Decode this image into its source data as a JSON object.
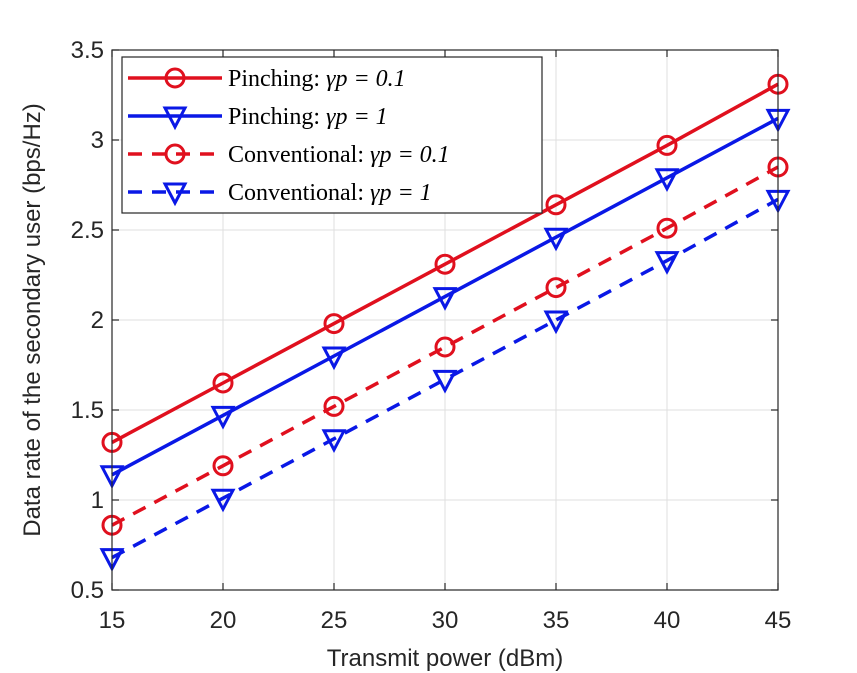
{
  "chart_data": {
    "type": "line",
    "title": "",
    "xlabel": "Transmit power (dBm)",
    "ylabel": "Data rate of the secondary user (bps/Hz)",
    "x": [
      15,
      20,
      25,
      30,
      35,
      40,
      45
    ],
    "xlim": [
      15,
      45
    ],
    "ylim": [
      0.5,
      3.5
    ],
    "xticks": [
      "15",
      "20",
      "25",
      "30",
      "35",
      "40",
      "45"
    ],
    "yticks": [
      "0.5",
      "1",
      "1.5",
      "2",
      "2.5",
      "3",
      "3.5"
    ],
    "grid": true,
    "legend_position": "top-left",
    "series": [
      {
        "name": "Pinching",
        "param": "γp = 0.1",
        "color": "#e0101e",
        "dash": "solid",
        "marker": "circle",
        "values": [
          1.32,
          1.65,
          1.98,
          2.31,
          2.64,
          2.97,
          3.31
        ]
      },
      {
        "name": "Pinching",
        "param": "γp = 1",
        "color": "#0a18e6",
        "dash": "solid",
        "marker": "triangle-down",
        "values": [
          1.14,
          1.47,
          1.8,
          2.13,
          2.46,
          2.79,
          3.12
        ]
      },
      {
        "name": "Conventional",
        "param": "γp = 0.1",
        "color": "#e0101e",
        "dash": "dashed",
        "marker": "circle",
        "values": [
          0.86,
          1.19,
          1.52,
          1.85,
          2.18,
          2.51,
          2.85
        ]
      },
      {
        "name": "Conventional",
        "param": "γp = 1",
        "color": "#0a18e6",
        "dash": "dashed",
        "marker": "triangle-down",
        "values": [
          0.68,
          1.01,
          1.34,
          1.67,
          2.0,
          2.33,
          2.67
        ]
      }
    ]
  }
}
